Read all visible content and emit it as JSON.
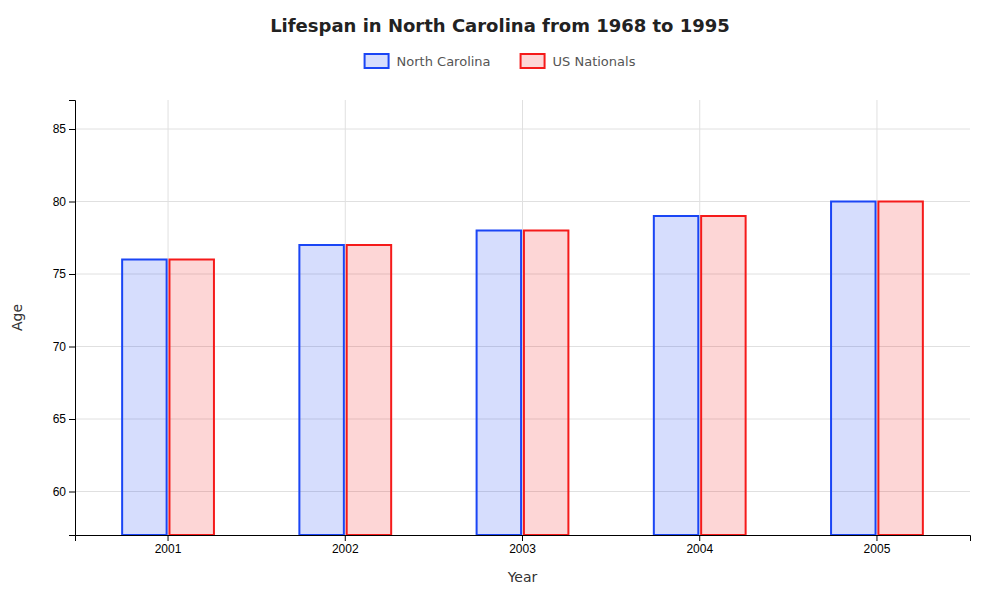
{
  "chart_data": {
    "type": "bar",
    "title": "Lifespan in North Carolina from 1968 to 1995",
    "x_label": "Year",
    "y_label": "Age",
    "categories": [
      "2001",
      "2002",
      "2003",
      "2004",
      "2005"
    ],
    "series": [
      {
        "name": "North Carolina",
        "color": "#1a45f5",
        "values": [
          76,
          77,
          78,
          79,
          80
        ]
      },
      {
        "name": "US Nationals",
        "color": "#f51a1a",
        "values": [
          76,
          77,
          78,
          79,
          80
        ]
      }
    ],
    "ylim": [
      57,
      87
    ],
    "yticks": [
      60,
      65,
      70,
      75,
      80,
      85
    ],
    "grid": true,
    "legend": "top"
  }
}
